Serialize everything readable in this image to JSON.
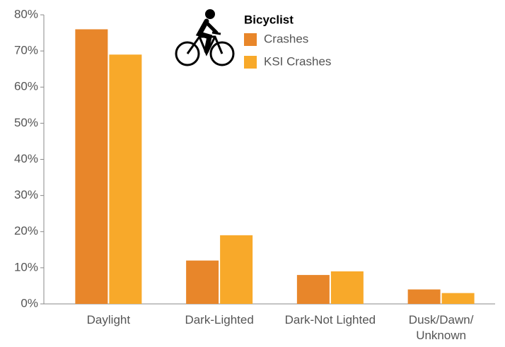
{
  "chart_data": {
    "type": "bar",
    "legend_title": "Bicyclist",
    "categories": [
      "Daylight",
      "Dark-Lighted",
      "Dark-Not Lighted",
      "Dusk/Dawn/\nUnknown"
    ],
    "series": [
      {
        "name": "Crashes",
        "color": "#e8862a",
        "values": [
          76,
          12,
          8,
          4
        ]
      },
      {
        "name": "KSI Crashes",
        "color": "#f8a92a",
        "values": [
          69,
          19,
          9,
          3
        ]
      }
    ],
    "ylim": [
      0,
      80
    ],
    "yticks": [
      {
        "value": 0,
        "label": "0%"
      },
      {
        "value": 10,
        "label": "10%"
      },
      {
        "value": 20,
        "label": "20%"
      },
      {
        "value": 30,
        "label": "30%"
      },
      {
        "value": 40,
        "label": "40%"
      },
      {
        "value": 50,
        "label": "50%"
      },
      {
        "value": 60,
        "label": "60%"
      },
      {
        "value": 70,
        "label": "70%"
      },
      {
        "value": 80,
        "label": "80%"
      }
    ]
  }
}
